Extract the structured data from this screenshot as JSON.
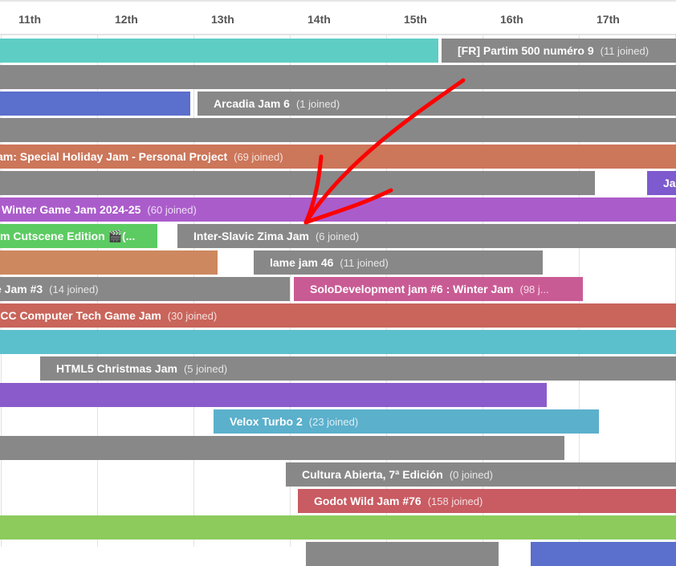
{
  "calendar": {
    "days": [
      "11th",
      "12th",
      "13th",
      "14th",
      "15th",
      "16th",
      "17th"
    ],
    "jams": [
      {
        "title": "",
        "joined": "",
        "color": "#5ecdc4"
      },
      {
        "title": "[FR] Partim 500 numéro 9",
        "joined": "(11 joined)",
        "color": "#888888"
      },
      {
        "title": "",
        "joined": "",
        "color": "#888888"
      },
      {
        "title": "",
        "joined": "",
        "color": "#5b6fcc"
      },
      {
        "title": "Arcadia Jam 6",
        "joined": "(1 joined)",
        "color": "#888888"
      },
      {
        "title": "",
        "joined": "",
        "color": "#888888"
      },
      {
        "title": "am: Special Holiday Jam - Personal Project",
        "joined": "(69 joined)",
        "color": "#cc765a"
      },
      {
        "title": "",
        "joined": "",
        "color": "#888888"
      },
      {
        "title": "Ja",
        "joined": "",
        "color": "#7d5acd"
      },
      {
        "title": "Winter Game Jam 2024-25",
        "joined": "(60 joined)",
        "color": "#ab5ccb"
      },
      {
        "title": "m Cutscene Edition 🎬(...",
        "joined": "",
        "color": "#5ccb62"
      },
      {
        "title": "Inter-Slavic Zima Jam",
        "joined": "(6 joined)",
        "color": "#888888"
      },
      {
        "title": "",
        "joined": "",
        "color": "#cd8860"
      },
      {
        "title": "lame jam 46",
        "joined": "(11 joined)",
        "color": "#888888"
      },
      {
        "title": "e Jam #3",
        "joined": "(14 joined)",
        "color": "#888888"
      },
      {
        "title": "SoloDevelopment jam #6 : Winter Jam",
        "joined": "(98 j...",
        "color": "#c95b94"
      },
      {
        "title": "SCC Computer Tech Game Jam",
        "joined": "(30 joined)",
        "color": "#c9655b"
      },
      {
        "title": "",
        "joined": "",
        "color": "#5bc0cc"
      },
      {
        "title": "HTML5 Christmas Jam",
        "joined": "(5 joined)",
        "color": "#888888"
      },
      {
        "title": "",
        "joined": "",
        "color": "#8a5ccb"
      },
      {
        "title": "Velox Turbo 2",
        "joined": "(23 joined)",
        "color": "#5bb0cc"
      },
      {
        "title": "",
        "joined": "",
        "color": "#888888"
      },
      {
        "title": "Cultura Abierta, 7ª Edición",
        "joined": "(0 joined)",
        "color": "#888888"
      },
      {
        "title": "Godot Wild Jam #76",
        "joined": "(158 joined)",
        "color": "#c95b62"
      },
      {
        "title": "",
        "joined": "",
        "color": "#8ccb5c"
      },
      {
        "title": "",
        "joined": "",
        "color": "#888888"
      },
      {
        "title": "",
        "joined": "",
        "color": "#5b6fcc"
      }
    ]
  },
  "annotation": {
    "color": "#ff0000",
    "icon": "arrow-annotation"
  }
}
